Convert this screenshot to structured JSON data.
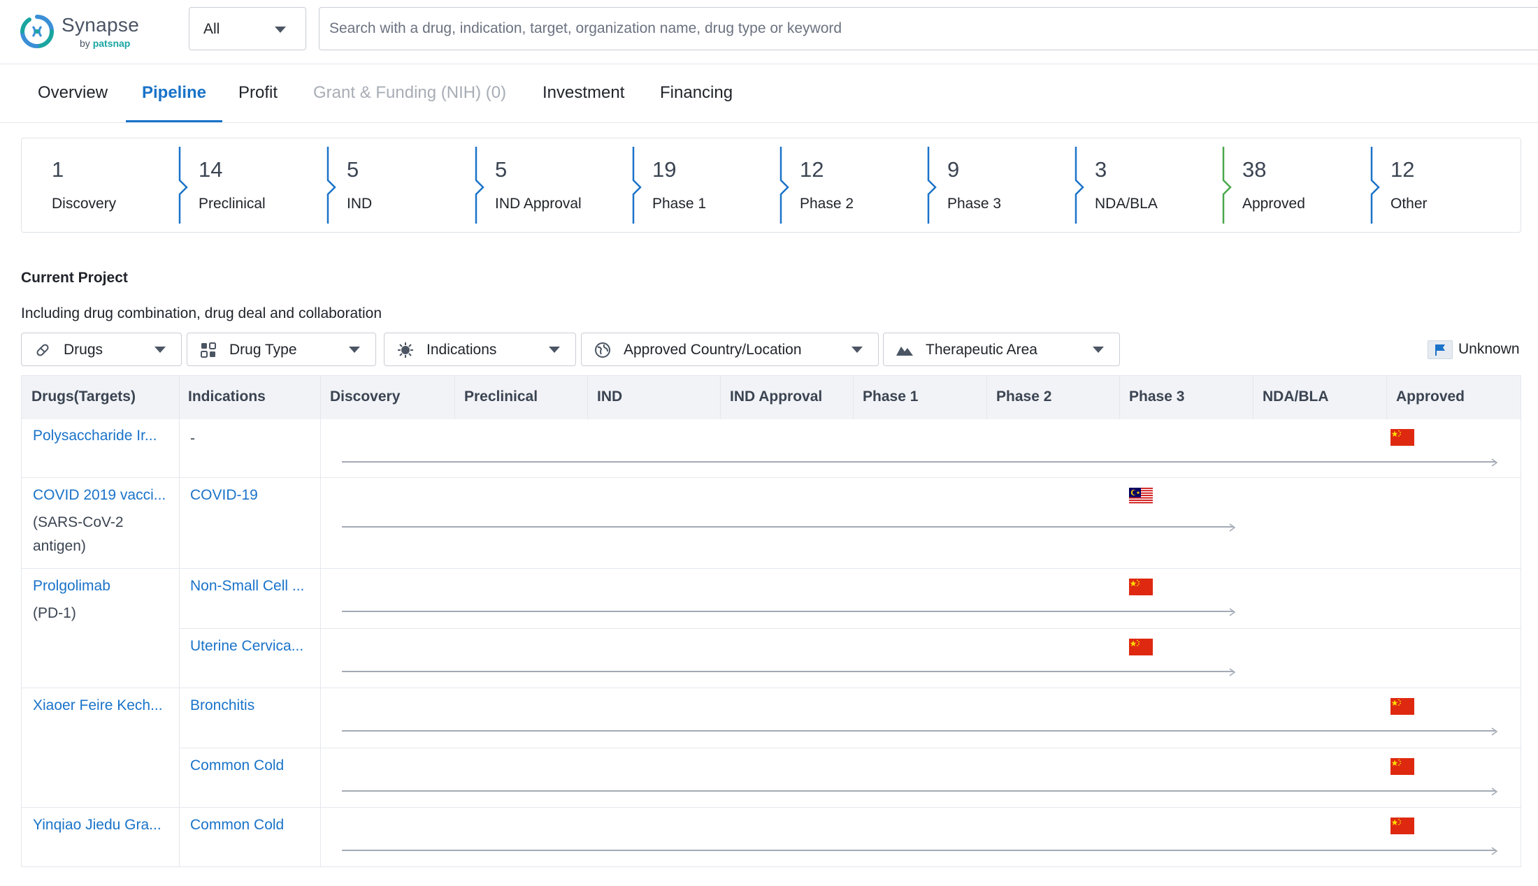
{
  "header": {
    "brand": "Synapse",
    "brand_by": "by",
    "brand_company": "patsnap",
    "scope_value": "All",
    "search_placeholder": "Search with a drug, indication, target, organization name, drug type or keyword"
  },
  "tabs": [
    {
      "label": "Overview",
      "state": "normal"
    },
    {
      "label": "Pipeline",
      "state": "active"
    },
    {
      "label": "Profit",
      "state": "normal"
    },
    {
      "label": "Grant & Funding (NIH) (0)",
      "state": "disabled"
    },
    {
      "label": "Investment",
      "state": "normal"
    },
    {
      "label": "Financing",
      "state": "normal"
    }
  ],
  "phases": [
    {
      "count": "1",
      "name": "Discovery"
    },
    {
      "count": "14",
      "name": "Preclinical"
    },
    {
      "count": "5",
      "name": "IND"
    },
    {
      "count": "5",
      "name": "IND Approval"
    },
    {
      "count": "19",
      "name": "Phase 1"
    },
    {
      "count": "12",
      "name": "Phase 2"
    },
    {
      "count": "9",
      "name": "Phase 3"
    },
    {
      "count": "3",
      "name": "NDA/BLA"
    },
    {
      "count": "38",
      "name": "Approved"
    },
    {
      "count": "12",
      "name": "Other"
    }
  ],
  "project": {
    "title": "Current Project",
    "subtitle": "Including drug combination, drug deal and collaboration",
    "filters": [
      {
        "label": "Drugs",
        "icon": "pill-icon"
      },
      {
        "label": "Drug Type",
        "icon": "drug-type-icon"
      },
      {
        "label": "Indications",
        "icon": "virus-icon"
      },
      {
        "label": "Approved Country/Location",
        "icon": "globe-icon"
      },
      {
        "label": "Therapeutic Area",
        "icon": "mountain-icon"
      }
    ],
    "legend_unknown": "Unknown"
  },
  "table": {
    "columns": [
      "Drugs(Targets)",
      "Indications",
      "Discovery",
      "Preclinical",
      "IND",
      "IND Approval",
      "Phase 1",
      "Phase 2",
      "Phase 3",
      "NDA/BLA",
      "Approved"
    ],
    "drugs": [
      {
        "name": "Polysaccharide Ir...",
        "target": "",
        "indications": [
          {
            "name": "-",
            "phase": "Approved",
            "country": "China"
          }
        ]
      },
      {
        "name": "COVID 2019 vacci...",
        "target": "(SARS-CoV-2 antigen)",
        "indications": [
          {
            "name": "COVID-19",
            "phase": "Phase 3",
            "country": "Malaysia"
          }
        ]
      },
      {
        "name": "Prolgolimab",
        "target": "(PD-1)",
        "indications": [
          {
            "name": "Non-Small Cell ...",
            "phase": "Phase 3",
            "country": "China"
          },
          {
            "name": "Uterine Cervica...",
            "phase": "Phase 3",
            "country": "China"
          }
        ]
      },
      {
        "name": "Xiaoer Feire Kech...",
        "target": "",
        "indications": [
          {
            "name": "Bronchitis",
            "phase": "Approved",
            "country": "China"
          },
          {
            "name": "Common Cold",
            "phase": "Approved",
            "country": "China"
          }
        ]
      },
      {
        "name": "Yinqiao Jiedu Gra...",
        "target": "",
        "indications": [
          {
            "name": "Common Cold",
            "phase": "Approved",
            "country": "China"
          }
        ]
      }
    ]
  },
  "colors": {
    "accent": "#1a73c9",
    "approved_divider": "#4aa84c",
    "track": "#a3aab5",
    "header_bg": "#f1f3f6"
  }
}
